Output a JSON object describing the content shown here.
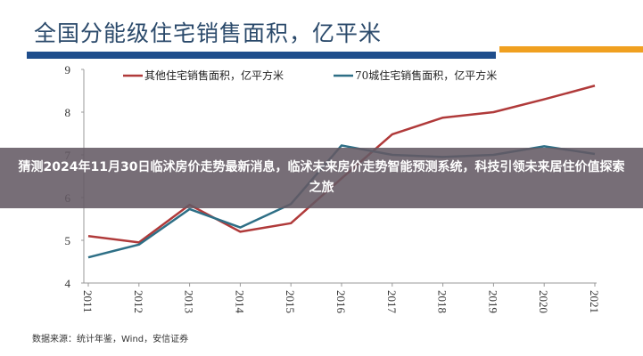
{
  "banner": {
    "text": "猜测2024年11月30日临沭房价走势最新消息，临沭未来房价走势智能预测系统，科技引领未来居住价值探索之旅"
  },
  "source": "数据来源：统计年鉴，Wind，安信证券",
  "colors": {
    "title_bar": "#1f4e8c",
    "accent_bar": "#f0a020",
    "other": "#b03a3a",
    "city70": "#2e6f86"
  },
  "chart_data": {
    "type": "line",
    "title": "全国分能级住宅销售面积，亿平米",
    "xlabel": "",
    "ylabel": "",
    "categories": [
      "2011",
      "2012",
      "2013",
      "2014",
      "2015",
      "2016",
      "2017",
      "2018",
      "2019",
      "2020",
      "2021"
    ],
    "ylim": [
      4,
      9
    ],
    "yticks": [
      4,
      5,
      6,
      7,
      8,
      9
    ],
    "legend_position": "top",
    "series": [
      {
        "name": "其他住宅销售面积，亿平方米",
        "color": "#b03a3a",
        "values": [
          5.1,
          4.95,
          5.83,
          5.2,
          5.4,
          6.45,
          7.48,
          7.87,
          8.0,
          8.3,
          8.62
        ]
      },
      {
        "name": "70城住宅销售面积，亿平方米",
        "color": "#2e6f86",
        "values": [
          4.6,
          4.9,
          5.73,
          5.3,
          5.85,
          7.22,
          7.0,
          6.95,
          7.0,
          7.2,
          7.02
        ]
      }
    ]
  }
}
